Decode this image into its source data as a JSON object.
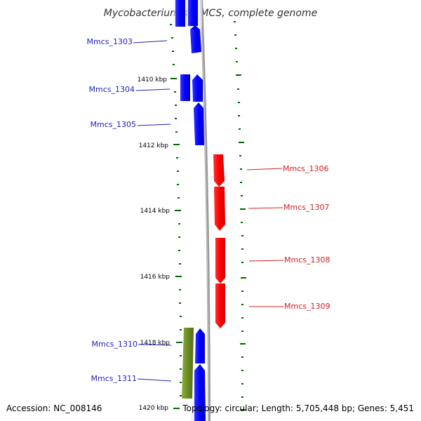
{
  "title": "Mycobacterium sp. MCS, complete genome",
  "footer": {
    "accession": "Accession: NC_008146",
    "topology": "Topology: circular; Length: 5,705,448 bp; Genes: 5,451"
  },
  "colors": {
    "forward": "#0000ff",
    "reverse": "#ff0000",
    "rna": "#6b8e23",
    "backbone": "#999999",
    "tick": "#006600"
  },
  "axis": {
    "unit": "kbp",
    "tick_labels": [
      "1410 kbp",
      "1412 kbp",
      "1414 kbp",
      "1416 kbp",
      "1418 kbp",
      "1420 kbp"
    ]
  },
  "genes": [
    {
      "id": "g_top_a",
      "name": "",
      "strand": "forward",
      "color": "forward",
      "kind": "box",
      "lane": "inner"
    },
    {
      "id": "g_top_b",
      "name": "",
      "strand": "forward",
      "color": "forward",
      "kind": "box",
      "lane": "outer"
    },
    {
      "id": "g1303",
      "name": "Mmcs_1303",
      "strand": "forward",
      "color": "forward",
      "kind": "arrow",
      "lane": "outer"
    },
    {
      "id": "g1304a",
      "name": "Mmcs_1304",
      "strand": "forward",
      "color": "forward",
      "kind": "box",
      "lane": "inner"
    },
    {
      "id": "g1304b",
      "name": "",
      "strand": "forward",
      "color": "forward",
      "kind": "arrow",
      "lane": "outer"
    },
    {
      "id": "g1305",
      "name": "Mmcs_1305",
      "strand": "forward",
      "color": "forward",
      "kind": "arrow",
      "lane": "outer"
    },
    {
      "id": "g1306",
      "name": "Mmcs_1306",
      "strand": "reverse",
      "color": "reverse",
      "kind": "arrow",
      "lane": "right"
    },
    {
      "id": "g1307",
      "name": "Mmcs_1307",
      "strand": "reverse",
      "color": "reverse",
      "kind": "arrow",
      "lane": "right"
    },
    {
      "id": "g1308",
      "name": "Mmcs_1308",
      "strand": "reverse",
      "color": "reverse",
      "kind": "arrow",
      "lane": "right"
    },
    {
      "id": "g1309",
      "name": "Mmcs_1309",
      "strand": "reverse",
      "color": "reverse",
      "kind": "arrow",
      "lane": "right"
    },
    {
      "id": "g1310",
      "name": "Mmcs_1310",
      "strand": "forward",
      "color": "rna",
      "kind": "box",
      "lane": "inner"
    },
    {
      "id": "g1310b",
      "name": "",
      "strand": "forward",
      "color": "forward",
      "kind": "arrow",
      "lane": "outer"
    },
    {
      "id": "g1311",
      "name": "Mmcs_1311",
      "strand": "forward",
      "color": "forward",
      "kind": "arrow",
      "lane": "outer"
    }
  ]
}
